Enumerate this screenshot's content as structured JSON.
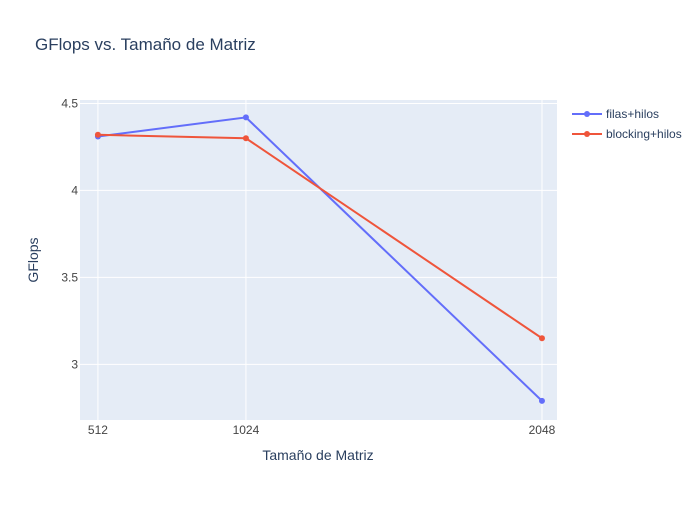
{
  "chart_data": {
    "type": "line",
    "title": "GFlops vs. Tamaño de Matriz",
    "xlabel": "Tamaño de Matriz",
    "ylabel": "GFlops",
    "x": [
      512,
      1024,
      2048
    ],
    "x_ticks": [
      "512",
      "1024",
      "2048"
    ],
    "y_ticks": [
      "3",
      "3.5",
      "4",
      "4.5"
    ],
    "y_tick_values": [
      3,
      3.5,
      4,
      4.5
    ],
    "xlim": [
      450,
      2100
    ],
    "ylim": [
      2.68,
      4.52
    ],
    "grid": true,
    "legend_position": "top-right",
    "series": [
      {
        "name": "filas+hilos",
        "color": "#636efa",
        "values": [
          4.31,
          4.42,
          2.79
        ]
      },
      {
        "name": "blocking+hilos",
        "color": "#ef553b",
        "values": [
          4.32,
          4.3,
          3.15
        ]
      }
    ]
  },
  "colors": {
    "plot_bg": "#e5ecf6",
    "grid": "#ffffff",
    "text": "#2a3f5f",
    "tick_text": "#444444"
  }
}
